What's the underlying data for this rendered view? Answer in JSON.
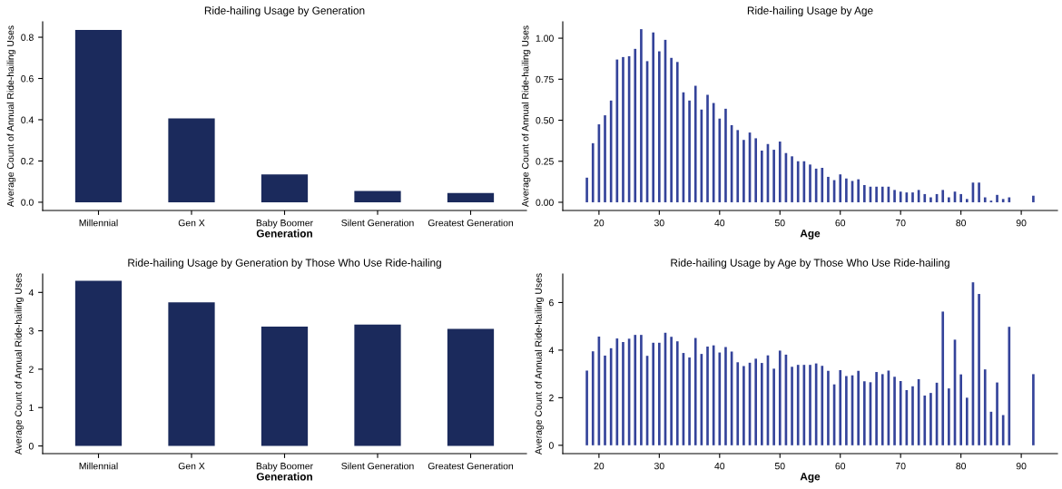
{
  "chart_data": [
    {
      "type": "bar",
      "title": "Ride-hailing Usage by Generation",
      "xlabel": "Generation",
      "ylabel": "Average Count of Annual Ride-hailing Uses",
      "categories": [
        "Millennial",
        "Gen X",
        "Baby Boomer",
        "Silent Generation",
        "Greatest Generation"
      ],
      "values": [
        0.835,
        0.407,
        0.135,
        0.055,
        0.045
      ],
      "color": "#1b2a5c",
      "ylim": [
        -0.04,
        0.875
      ],
      "yticks": [
        {
          "value": 0,
          "label": "0.0"
        },
        {
          "value": 0.2,
          "label": "0.2"
        },
        {
          "value": 0.4,
          "label": "0.4"
        },
        {
          "value": 0.6,
          "label": "0.6"
        },
        {
          "value": 0.8,
          "label": "0.8"
        }
      ]
    },
    {
      "type": "bar",
      "title": "Ride-hailing Usage by Age",
      "xlabel": "Age",
      "ylabel": "Average Count of Annual Ride-hailing Uses",
      "x": [
        18,
        19,
        20,
        21,
        22,
        23,
        24,
        25,
        26,
        27,
        28,
        29,
        30,
        31,
        32,
        33,
        34,
        35,
        36,
        37,
        38,
        39,
        40,
        41,
        42,
        43,
        44,
        45,
        46,
        47,
        48,
        49,
        50,
        51,
        52,
        53,
        54,
        55,
        56,
        57,
        58,
        59,
        60,
        61,
        62,
        63,
        64,
        65,
        66,
        67,
        68,
        69,
        70,
        71,
        72,
        73,
        74,
        75,
        76,
        77,
        78,
        79,
        80,
        81,
        82,
        83,
        84,
        85,
        86,
        87,
        88,
        92
      ],
      "values": [
        0.15,
        0.36,
        0.475,
        0.53,
        0.62,
        0.87,
        0.885,
        0.89,
        0.935,
        1.055,
        0.86,
        1.035,
        0.92,
        0.99,
        0.88,
        0.855,
        0.67,
        0.62,
        0.71,
        0.565,
        0.655,
        0.605,
        0.51,
        0.57,
        0.47,
        0.44,
        0.38,
        0.425,
        0.39,
        0.315,
        0.355,
        0.32,
        0.37,
        0.3,
        0.28,
        0.25,
        0.25,
        0.23,
        0.205,
        0.21,
        0.155,
        0.135,
        0.17,
        0.145,
        0.13,
        0.14,
        0.105,
        0.095,
        0.095,
        0.095,
        0.095,
        0.075,
        0.065,
        0.06,
        0.06,
        0.075,
        0.05,
        0.03,
        0.05,
        0.075,
        0.03,
        0.065,
        0.05,
        0.02,
        0.12,
        0.12,
        0.03,
        0.01,
        0.045,
        0.02,
        0.03,
        0.04
      ],
      "color": "#34439a",
      "xlim": [
        14,
        96
      ],
      "xticks": [
        20,
        30,
        40,
        50,
        60,
        70,
        80,
        90
      ],
      "ylim": [
        -0.05,
        1.1
      ],
      "yticks": [
        {
          "value": 0,
          "label": "0.00"
        },
        {
          "value": 0.25,
          "label": "0.25"
        },
        {
          "value": 0.5,
          "label": "0.50"
        },
        {
          "value": 0.75,
          "label": "0.75"
        },
        {
          "value": 1,
          "label": "1.00"
        }
      ]
    },
    {
      "type": "bar",
      "title": "Ride-hailing Usage by Generation by Those Who Use Ride-hailing",
      "xlabel": "Generation",
      "ylabel": "Average Count of Annual Ride-hailing Uses",
      "categories": [
        "Millennial",
        "Gen X",
        "Baby Boomer",
        "Silent Generation",
        "Greatest Generation"
      ],
      "values": [
        4.3,
        3.74,
        3.11,
        3.16,
        3.05
      ],
      "color": "#1b2a5c",
      "ylim": [
        -0.2,
        4.48
      ],
      "yticks": [
        0,
        1,
        2,
        3,
        4
      ]
    },
    {
      "type": "bar",
      "title": "Ride-hailing Usage by Age by Those Who Use Ride-hailing",
      "xlabel": "Age",
      "ylabel": "Average Count of Annual Ride-hailing Uses",
      "x": [
        18,
        19,
        20,
        21,
        22,
        23,
        24,
        25,
        26,
        27,
        28,
        29,
        30,
        31,
        32,
        33,
        34,
        35,
        36,
        37,
        38,
        39,
        40,
        41,
        42,
        43,
        44,
        45,
        46,
        47,
        48,
        49,
        50,
        51,
        52,
        53,
        54,
        55,
        56,
        57,
        58,
        59,
        60,
        61,
        62,
        63,
        64,
        65,
        66,
        67,
        68,
        69,
        70,
        71,
        72,
        73,
        74,
        75,
        76,
        77,
        78,
        79,
        80,
        81,
        82,
        83,
        84,
        85,
        86,
        87,
        88,
        92
      ],
      "values": [
        3.14,
        3.95,
        4.57,
        3.77,
        4.08,
        4.49,
        4.34,
        4.48,
        4.64,
        4.64,
        3.76,
        4.31,
        4.31,
        4.73,
        4.56,
        4.37,
        3.88,
        3.69,
        4.51,
        3.84,
        4.15,
        4.2,
        3.9,
        4.13,
        3.94,
        3.49,
        3.33,
        3.47,
        3.64,
        3.46,
        3.78,
        3.22,
        3.98,
        3.81,
        3.3,
        3.38,
        3.38,
        3.38,
        3.44,
        3.34,
        3.13,
        2.56,
        3.16,
        2.91,
        2.94,
        3.13,
        2.69,
        2.65,
        3.08,
        2.99,
        3.14,
        2.88,
        2.7,
        2.32,
        2.48,
        2.78,
        2.09,
        2.2,
        2.63,
        5.62,
        2.39,
        4.44,
        2.98,
        2.0,
        6.85,
        6.36,
        3.19,
        1.41,
        2.64,
        1.27,
        4.98,
        2.99
      ],
      "color": "#34439a",
      "xlim": [
        14,
        96
      ],
      "xticks": [
        20,
        30,
        40,
        50,
        60,
        70,
        80,
        90
      ],
      "ylim": [
        -0.35,
        7.2
      ],
      "yticks": [
        0,
        2,
        4,
        6
      ]
    }
  ]
}
